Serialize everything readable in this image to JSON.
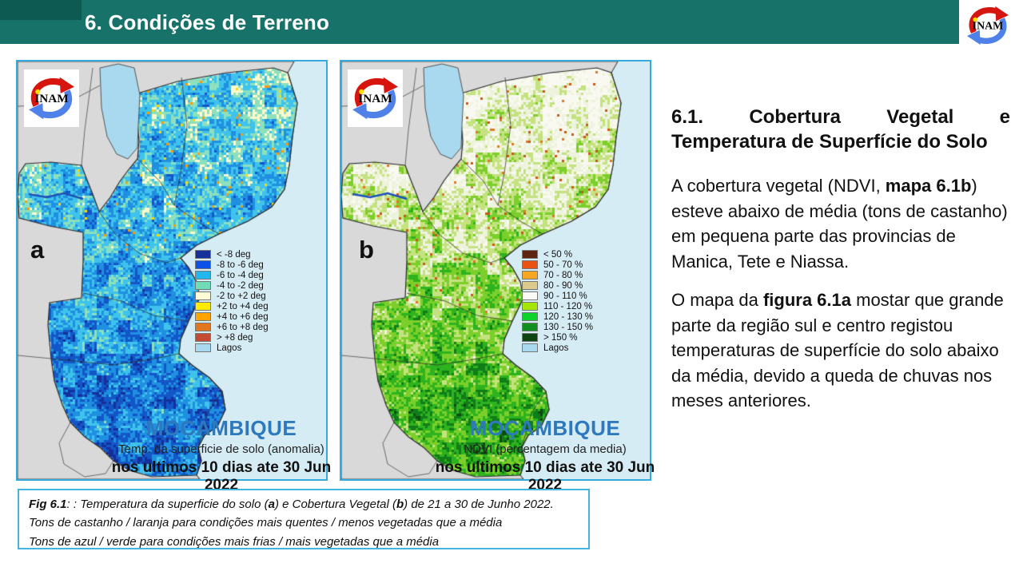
{
  "header": {
    "title": "6. Condições de Terreno"
  },
  "logo": {
    "text": "INAM"
  },
  "colors": {
    "header_bar": "#17736a",
    "header_accent": "#0c5a52",
    "panel_border": "#35aadc",
    "ocean": "#d6ecf5",
    "land": "#d9d9d9",
    "land_border": "#4a4a4a",
    "lake": "#a8d9ee",
    "river": "#1d50b8",
    "country_label": "#2e78be"
  },
  "maps": {
    "a": {
      "letter": "a",
      "country": "MOÇAMBIQUE",
      "subtitle": "Temp. da superficie de solo (anomalia)",
      "period": "nos ultimos 10 dias ate 30 Jun 2022",
      "legend": [
        {
          "color": "#15309b",
          "label": "< -8 deg"
        },
        {
          "color": "#0d52e8",
          "label": "-8 to -6 deg"
        },
        {
          "color": "#23b7f0",
          "label": "-6 to -4 deg"
        },
        {
          "color": "#6fdcb8",
          "label": "-4 to -2 deg"
        },
        {
          "color": "#fffcd6",
          "label": "-2 to +2 deg"
        },
        {
          "color": "#ffec00",
          "label": "+2 to +4 deg"
        },
        {
          "color": "#ffa400",
          "label": "+4 to +6 deg"
        },
        {
          "color": "#e2761f",
          "label": "+6 to +8 deg"
        },
        {
          "color": "#c44a33",
          "label": "> +8 deg"
        },
        {
          "color": "#a8d9ee",
          "label": "Lagos"
        }
      ],
      "speckle_palette": [
        "#fdf9cf",
        "#8ce0bd",
        "#3fc3ec",
        "#1f8fe0",
        "#1256c8",
        "#15309b"
      ],
      "accent_colors": [
        "#ffd800",
        "#ff9900"
      ]
    },
    "b": {
      "letter": "b",
      "country": "MOÇAMBIQUE",
      "subtitle": "NDVI (percentagem da media)",
      "period": "nos ultimos 10 dias ate 30 Jun 2022",
      "legend": [
        {
          "color": "#5e2410",
          "label": "< 50 %"
        },
        {
          "color": "#ea5213",
          "label": "50 - 70 %"
        },
        {
          "color": "#f6a623",
          "label": "70 - 80 %"
        },
        {
          "color": "#dcca8c",
          "label": "80 - 90 %"
        },
        {
          "color": "#fbfbf6",
          "label": "90 - 110 %"
        },
        {
          "color": "#a4e607",
          "label": "110 - 120 %"
        },
        {
          "color": "#0cd42a",
          "label": "120 - 130 %"
        },
        {
          "color": "#12901f",
          "label": "130 - 150 %"
        },
        {
          "color": "#0d4412",
          "label": "> 150 %"
        },
        {
          "color": "#a8d9ee",
          "label": "Lagos"
        }
      ],
      "speckle_palette": [
        "#f9f9f1",
        "#eef3dd",
        "#c4e27f",
        "#7ccf2a",
        "#2eb31e",
        "#117d19",
        "#0b4a11"
      ],
      "accent_colors": [
        "#e07828",
        "#c8591a"
      ]
    }
  },
  "right_panel": {
    "heading_line1_words": [
      "6.1.",
      "Cobertura",
      "Vegetal",
      "e"
    ],
    "heading_line2": "Temperatura de Superfície do Solo",
    "paragraphs": [
      [
        {
          "t": "A cobertura vegetal (NDVI, "
        },
        {
          "t": "mapa 6.1b",
          "b": true
        },
        {
          "t": ") esteve abaixo de média (tons de castanho)  em pequena parte das provincias de Manica, Tete e Niassa."
        }
      ],
      [
        {
          "t": "O mapa da "
        },
        {
          "t": "figura 6.1a",
          "b": true
        },
        {
          "t": " mostar que grande parte da região sul e centro registou temperaturas de superfície do solo abaixo da média, devido a queda de chuvas nos meses anteriores."
        }
      ]
    ]
  },
  "caption": {
    "lines": [
      [
        {
          "t": "Fig 6.1",
          "b": true,
          "i": true
        },
        {
          "t": ": : ",
          "i": true
        },
        {
          "t": "Temperatura da superficie do solo (",
          "i": true
        },
        {
          "t": "a",
          "b": true,
          "i": true
        },
        {
          "t": ") e Cobertura  Vegetal (",
          "i": true
        },
        {
          "t": "b",
          "b": true,
          "i": true
        },
        {
          "t": ") de 21 a 30 de Junho 2022.",
          "i": true
        }
      ],
      [
        {
          "t": "Tons de castanho / laranja para  condições mais quentes / menos vegetadas que a média",
          "i": true
        }
      ],
      [
        {
          "t": "Tons de azul  / verde para  condições mais frias / mais vegetadas que a média",
          "i": true
        }
      ]
    ]
  }
}
